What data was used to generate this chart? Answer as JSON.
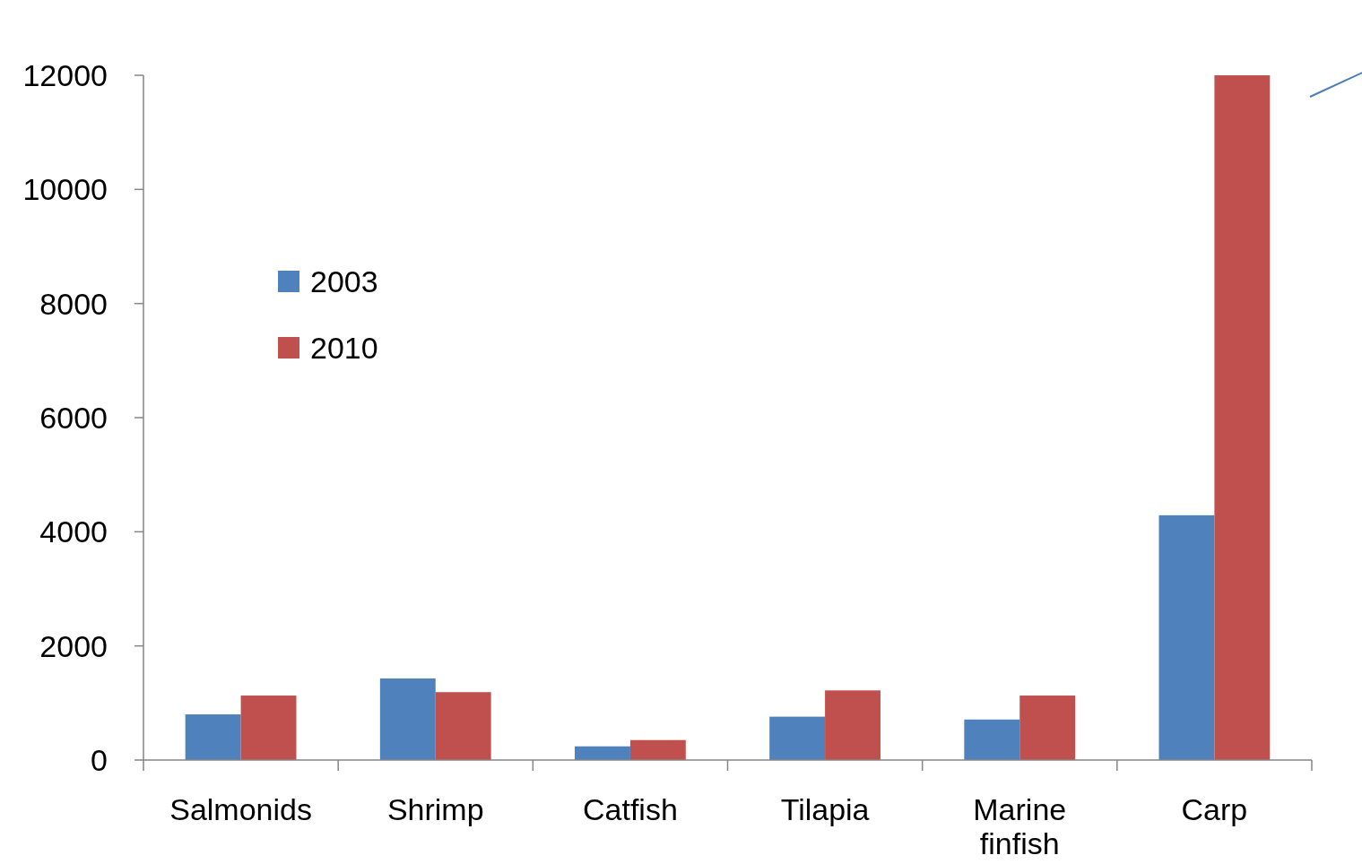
{
  "chart_data": {
    "type": "bar",
    "categories": [
      "Salmonids",
      "Shrimp",
      "Catfish",
      "Tilapia",
      "Marine finfish",
      "Carp"
    ],
    "series": [
      {
        "name": "2003",
        "color": "#4f81bd",
        "values": [
          800,
          1430,
          240,
          760,
          710,
          4290
        ]
      },
      {
        "name": "2010",
        "color": "#c0504d",
        "values": [
          1130,
          1190,
          350,
          1220,
          1130,
          12000
        ]
      }
    ],
    "ylim": [
      0,
      12000
    ],
    "yticks": [
      0,
      2000,
      4000,
      6000,
      8000,
      10000,
      12000
    ],
    "grid": false,
    "legend": "top left"
  }
}
